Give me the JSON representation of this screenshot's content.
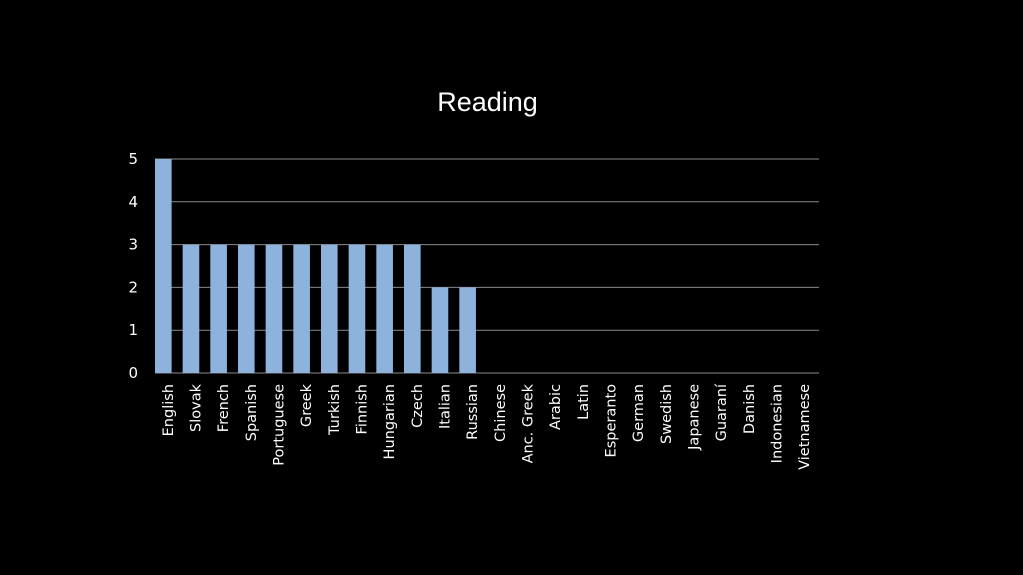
{
  "chart_data": {
    "type": "bar",
    "title": "Reading",
    "xlabel": "",
    "ylabel": "",
    "ylim": [
      0,
      5
    ],
    "yticks": [
      0,
      1,
      2,
      3,
      4,
      5
    ],
    "grid": true,
    "bar_color": "#8db3dd",
    "grid_color": "#8a8a8a",
    "background": "#000000",
    "categories": [
      "English",
      "Slovak",
      "French",
      "Spanish",
      "Portuguese",
      "Greek",
      "Turkish",
      "Finnish",
      "Hungarian",
      "Czech",
      "Italian",
      "Russian",
      "Chinese",
      "Anc. Greek",
      "Arabic",
      "Latin",
      "Esperanto",
      "German",
      "Swedish",
      "Japanese",
      "Guaraní",
      "Danish",
      "Indonesian",
      "Vietnamese"
    ],
    "values": [
      5,
      3,
      3,
      3,
      3,
      3,
      3,
      3,
      3,
      3,
      2,
      2,
      0,
      0,
      0,
      0,
      0,
      0,
      0,
      0,
      0,
      0,
      0,
      0
    ]
  }
}
